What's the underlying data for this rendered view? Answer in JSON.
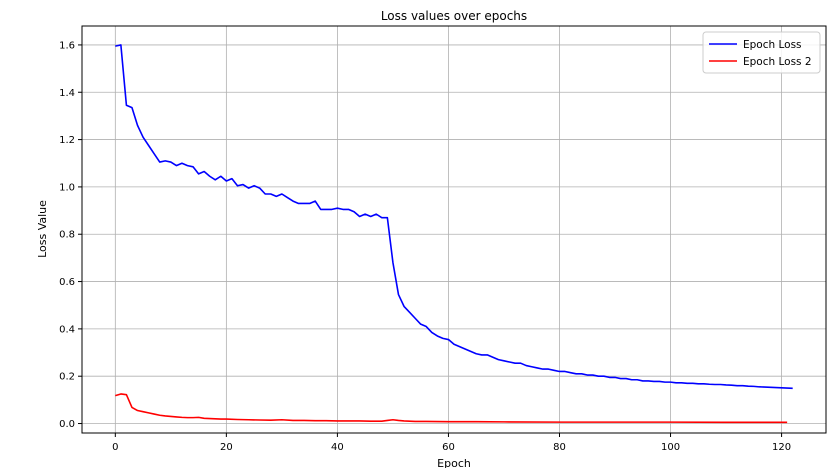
{
  "chart_data": {
    "type": "line",
    "title": "Loss values over epochs",
    "xlabel": "Epoch",
    "ylabel": "Loss Value",
    "xlim": [
      -6,
      128
    ],
    "ylim": [
      -0.04,
      1.68
    ],
    "xticks": [
      0,
      20,
      40,
      60,
      80,
      100,
      120
    ],
    "yticks": [
      0.0,
      0.2,
      0.4,
      0.6,
      0.8,
      1.0,
      1.2,
      1.4,
      1.6
    ],
    "grid": true,
    "legend_position": "top-right",
    "series": [
      {
        "name": "Epoch Loss",
        "color": "#0000ff",
        "x": [
          0,
          1,
          2,
          3,
          4,
          5,
          6,
          7,
          8,
          9,
          10,
          11,
          12,
          13,
          14,
          15,
          16,
          17,
          18,
          19,
          20,
          21,
          22,
          23,
          24,
          25,
          26,
          27,
          28,
          29,
          30,
          31,
          32,
          33,
          34,
          35,
          36,
          37,
          38,
          39,
          40,
          41,
          42,
          43,
          44,
          45,
          46,
          47,
          48,
          49,
          50,
          51,
          52,
          53,
          54,
          55,
          56,
          57,
          58,
          59,
          60,
          61,
          62,
          63,
          64,
          65,
          66,
          67,
          68,
          69,
          70,
          71,
          72,
          73,
          74,
          75,
          76,
          77,
          78,
          79,
          80,
          81,
          82,
          83,
          84,
          85,
          86,
          87,
          88,
          89,
          90,
          91,
          92,
          93,
          94,
          95,
          96,
          97,
          98,
          99,
          100,
          101,
          102,
          103,
          104,
          105,
          106,
          107,
          108,
          109,
          110,
          111,
          112,
          113,
          114,
          115,
          116,
          117,
          118,
          119,
          120,
          121,
          122
        ],
        "y": [
          1.595,
          1.6,
          1.345,
          1.335,
          1.26,
          1.21,
          1.175,
          1.14,
          1.105,
          1.11,
          1.105,
          1.09,
          1.1,
          1.09,
          1.085,
          1.055,
          1.065,
          1.045,
          1.03,
          1.045,
          1.025,
          1.035,
          1.005,
          1.01,
          0.995,
          1.005,
          0.995,
          0.97,
          0.97,
          0.96,
          0.97,
          0.955,
          0.94,
          0.93,
          0.93,
          0.93,
          0.94,
          0.905,
          0.905,
          0.905,
          0.91,
          0.905,
          0.905,
          0.895,
          0.875,
          0.885,
          0.875,
          0.885,
          0.87,
          0.87,
          0.68,
          0.545,
          0.495,
          0.47,
          0.445,
          0.42,
          0.41,
          0.385,
          0.37,
          0.36,
          0.355,
          0.335,
          0.325,
          0.315,
          0.305,
          0.295,
          0.29,
          0.29,
          0.28,
          0.27,
          0.265,
          0.26,
          0.255,
          0.255,
          0.245,
          0.24,
          0.235,
          0.23,
          0.23,
          0.225,
          0.22,
          0.22,
          0.215,
          0.21,
          0.21,
          0.205,
          0.205,
          0.2,
          0.2,
          0.195,
          0.195,
          0.19,
          0.19,
          0.185,
          0.185,
          0.18,
          0.18,
          0.178,
          0.178,
          0.175,
          0.175,
          0.172,
          0.172,
          0.17,
          0.17,
          0.168,
          0.168,
          0.166,
          0.165,
          0.165,
          0.163,
          0.162,
          0.16,
          0.16,
          0.158,
          0.157,
          0.155,
          0.154,
          0.153,
          0.152,
          0.151,
          0.15,
          0.149
        ]
      },
      {
        "name": "Epoch Loss 2",
        "color": "#ff0000",
        "x": [
          0,
          1,
          2,
          3,
          4,
          5,
          6,
          7,
          8,
          9,
          10,
          11,
          12,
          13,
          14,
          15,
          16,
          17,
          18,
          19,
          20,
          22,
          24,
          26,
          28,
          30,
          32,
          34,
          36,
          38,
          40,
          42,
          44,
          46,
          48,
          49,
          50,
          51,
          52,
          54,
          56,
          60,
          65,
          70,
          80,
          90,
          100,
          110,
          121
        ],
        "y": [
          0.118,
          0.125,
          0.122,
          0.068,
          0.055,
          0.05,
          0.045,
          0.04,
          0.035,
          0.032,
          0.03,
          0.028,
          0.026,
          0.025,
          0.025,
          0.026,
          0.022,
          0.021,
          0.02,
          0.019,
          0.019,
          0.017,
          0.016,
          0.015,
          0.014,
          0.016,
          0.013,
          0.013,
          0.012,
          0.012,
          0.011,
          0.011,
          0.011,
          0.01,
          0.01,
          0.013,
          0.016,
          0.013,
          0.011,
          0.009,
          0.009,
          0.008,
          0.008,
          0.007,
          0.006,
          0.006,
          0.006,
          0.005,
          0.005
        ]
      }
    ]
  }
}
